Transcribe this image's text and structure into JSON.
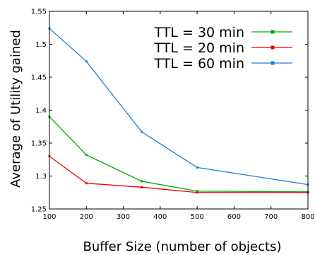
{
  "chart_data": {
    "type": "line",
    "title": "",
    "xlabel": "Buffer Size (number of objects)",
    "ylabel": "Average of Utility gained",
    "x": [
      100,
      200,
      350,
      500,
      800
    ],
    "xlim": [
      100,
      800
    ],
    "ylim": [
      1.25,
      1.55
    ],
    "xticks": [
      "100",
      "200",
      "300",
      "400",
      "500",
      "600",
      "700",
      "800"
    ],
    "yticks": [
      "1.25",
      "1.3",
      "1.35",
      "1.4",
      "1.45",
      "1.5",
      "1.55"
    ],
    "grid": false,
    "legend_position": "top-right",
    "series": [
      {
        "name": "TTL = 30 min",
        "color": "#00aa00",
        "values": [
          1.39,
          1.332,
          1.292,
          1.277,
          1.276
        ]
      },
      {
        "name": "TTL = 20 min",
        "color": "#ee0000",
        "values": [
          1.33,
          1.289,
          1.283,
          1.275,
          1.275
        ]
      },
      {
        "name": "TTL = 60 min",
        "color": "#1a7fd4",
        "values": [
          1.524,
          1.474,
          1.367,
          1.313,
          1.287
        ]
      }
    ]
  }
}
